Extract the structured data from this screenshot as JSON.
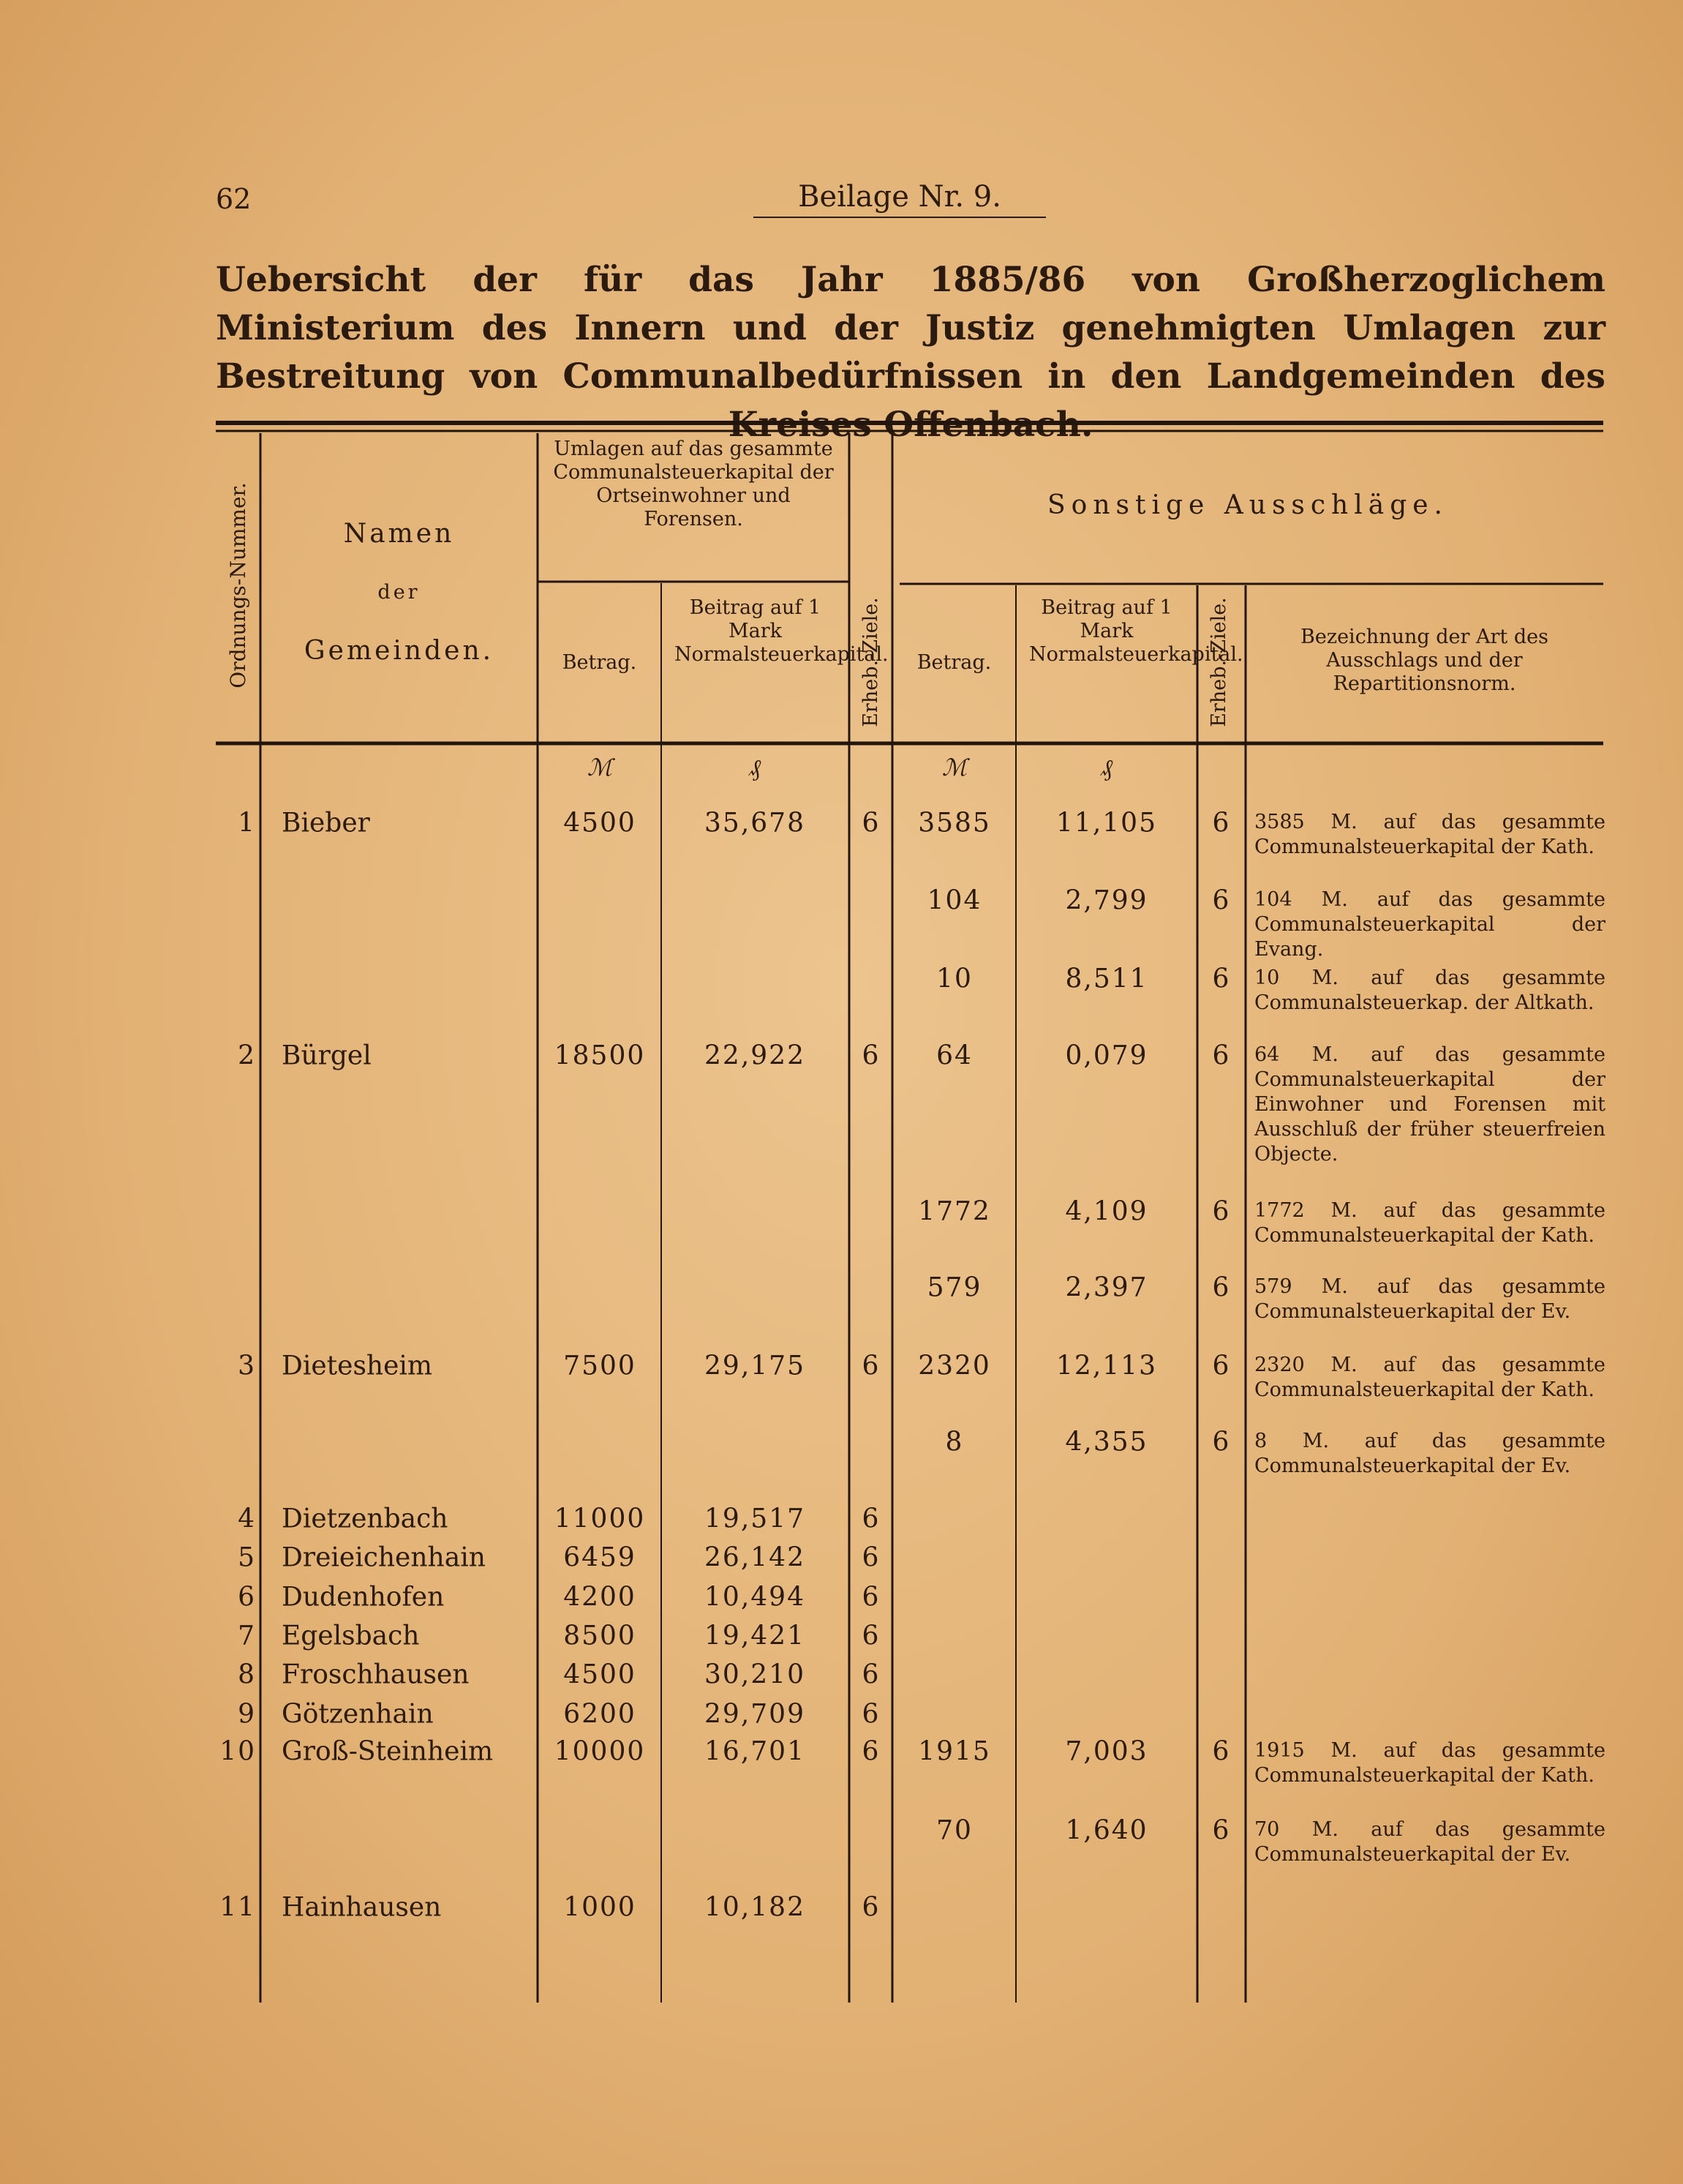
{
  "header": {
    "page_number": "62",
    "title": "Beilage Nr. 9."
  },
  "heading": "Uebersicht der für das Jahr 1885/86 von Großherzoglichem Ministerium des Innern und der Justiz genehmigten Umlagen zur Bestreitung von Communalbedürfnissen in den Landgemeinden des Kreises Offenbach.",
  "table": {
    "columns": {
      "number": "Ordnungs-Nummer.",
      "name": [
        "Namen",
        "der",
        "Gemeinden."
      ],
      "group_umlagen": "Umlagen auf das gesammte Communalsteuerkapital der Ortseinwohner und Forensen.",
      "group_sonstige": "Sonstige Ausschläge.",
      "sub": [
        "Betrag.",
        "Beitrag auf 1 Mark Normalsteuerkapital.",
        "Erheb.-Ziele.",
        "Betrag.",
        "Beitrag auf 1 Mark Normalsteuerkapital.",
        "Erheb.-Ziele.",
        "Bezeichnung der Art des Ausschlags und der Repartitionsnorm."
      ],
      "units": [
        "ℳ",
        "₰",
        "ℳ",
        "₰"
      ]
    },
    "rows": [
      [
        "1",
        "Bieber",
        "4500",
        "35,678",
        "6",
        "3585",
        "11,105",
        "6",
        "3585 M. auf das gesammte Communalsteuerkapital der Kath."
      ],
      [
        null,
        null,
        null,
        null,
        null,
        "104",
        "2,799",
        "6",
        "104 M. auf das gesammte Communalsteuerkapital der Evang."
      ],
      [
        null,
        null,
        null,
        null,
        null,
        "10",
        "8,511",
        "6",
        "10 M. auf das gesammte Communalsteuerkap. der Altkath."
      ],
      [
        "2",
        "Bürgel",
        "18500",
        "22,922",
        "6",
        "64",
        "0,079",
        "6",
        "64 M. auf das gesammte Communalsteuerkapital der Einwohner und Forensen mit Ausschluß der früher steuerfreien Objecte."
      ],
      [
        null,
        null,
        null,
        null,
        null,
        "1772",
        "4,109",
        "6",
        "1772 M. auf das gesammte Communalsteuerkapital der Kath."
      ],
      [
        null,
        null,
        null,
        null,
        null,
        "579",
        "2,397",
        "6",
        "579 M. auf das gesammte Communalsteuerkapital der Ev."
      ],
      [
        "3",
        "Dietesheim",
        "7500",
        "29,175",
        "6",
        "2320",
        "12,113",
        "6",
        "2320 M. auf das gesammte Communalsteuerkapital der Kath."
      ],
      [
        null,
        null,
        null,
        null,
        null,
        "8",
        "4,355",
        "6",
        "8 M. auf das gesammte Communalsteuerkapital der Ev."
      ],
      [
        "4",
        "Dietzenbach",
        "11000",
        "19,517",
        "6",
        null,
        null,
        null,
        null
      ],
      [
        "5",
        "Dreieichenhain",
        "6459",
        "26,142",
        "6",
        null,
        null,
        null,
        null
      ],
      [
        "6",
        "Dudenhofen",
        "4200",
        "10,494",
        "6",
        null,
        null,
        null,
        null
      ],
      [
        "7",
        "Egelsbach",
        "8500",
        "19,421",
        "6",
        null,
        null,
        null,
        null
      ],
      [
        "8",
        "Froschhausen",
        "4500",
        "30,210",
        "6",
        null,
        null,
        null,
        null
      ],
      [
        "9",
        "Götzenhain",
        "6200",
        "29,709",
        "6",
        null,
        null,
        null,
        null
      ],
      [
        "10",
        "Groß-Steinheim",
        "10000",
        "16,701",
        "6",
        "1915",
        "7,003",
        "6",
        "1915 M. auf das gesammte Communalsteuerkapital der Kath."
      ],
      [
        null,
        null,
        null,
        null,
        null,
        "70",
        "1,640",
        "6",
        "70 M. auf das gesammte Communalsteuerkapital der Ev."
      ],
      [
        "11",
        "Hainhausen",
        "1000",
        "10,182",
        "6",
        null,
        null,
        null,
        null
      ]
    ]
  }
}
